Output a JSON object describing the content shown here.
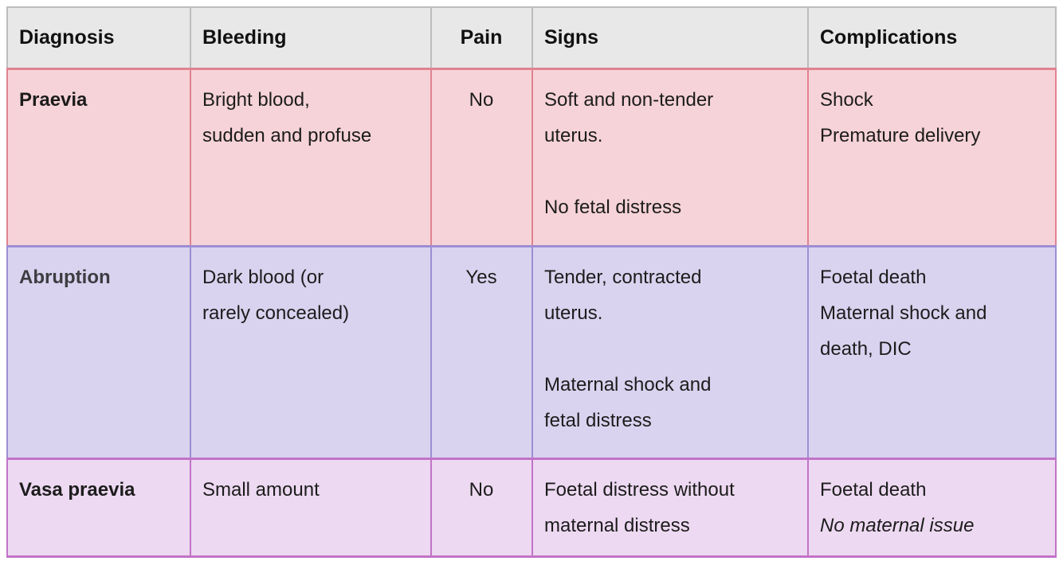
{
  "table": {
    "header": {
      "bg": "#e9e8e9",
      "border": "#bdbdbd",
      "text_color": "#111111",
      "columns": [
        {
          "label": "Diagnosis",
          "align": "left"
        },
        {
          "label": "Bleeding",
          "align": "left"
        },
        {
          "label": "Pain",
          "align": "center"
        },
        {
          "label": "Signs",
          "align": "left"
        },
        {
          "label": "Complications",
          "align": "left"
        }
      ]
    },
    "rows": [
      {
        "diagnosis": "Praevia",
        "bg": "#f6d3d8",
        "border": "#e08391",
        "cells": [
          {
            "lines": [
              {
                "text": "Praevia",
                "bold": true
              }
            ]
          },
          {
            "lines": [
              {
                "text": "Bright blood,"
              },
              {
                "text": "sudden and profuse"
              }
            ]
          },
          {
            "align": "center",
            "lines": [
              {
                "text": "No"
              }
            ]
          },
          {
            "lines": [
              {
                "text": "Soft and non-tender"
              },
              {
                "text": "uterus."
              },
              {
                "text": ""
              },
              {
                "text": "No fetal distress"
              }
            ]
          },
          {
            "lines": [
              {
                "text": "Shock"
              },
              {
                "text": "Premature delivery"
              }
            ]
          }
        ]
      },
      {
        "diagnosis": "Abruption",
        "bg": "#d9d3ef",
        "border": "#9d8ed4",
        "cells": [
          {
            "lines": [
              {
                "text": "Abruption",
                "bold": true,
                "color": "#3d3d42"
              }
            ]
          },
          {
            "lines": [
              {
                "text": "Dark blood (or"
              },
              {
                "text": "rarely concealed)"
              }
            ]
          },
          {
            "align": "center",
            "lines": [
              {
                "text": "Yes"
              }
            ]
          },
          {
            "lines": [
              {
                "text": "Tender, contracted"
              },
              {
                "text": "uterus."
              },
              {
                "text": ""
              },
              {
                "text": "Maternal shock and"
              },
              {
                "text": "fetal distress"
              }
            ]
          },
          {
            "lines": [
              {
                "text": "Foetal death"
              },
              {
                "text": "Maternal shock and"
              },
              {
                "text": "death, DIC"
              }
            ]
          }
        ]
      },
      {
        "diagnosis": "Vasa praevia",
        "bg": "#edd9f1",
        "border": "#c273c8",
        "cells": [
          {
            "lines": [
              {
                "text": "Vasa praevia",
                "bold": true
              }
            ]
          },
          {
            "lines": [
              {
                "text": "Small amount"
              }
            ]
          },
          {
            "align": "center",
            "lines": [
              {
                "text": "No"
              }
            ]
          },
          {
            "lines": [
              {
                "text": "Foetal distress without"
              },
              {
                "text": "maternal distress"
              }
            ]
          },
          {
            "lines": [
              {
                "text": "Foetal death"
              },
              {
                "text": "No maternal issue",
                "italic": true
              }
            ]
          }
        ]
      }
    ]
  }
}
